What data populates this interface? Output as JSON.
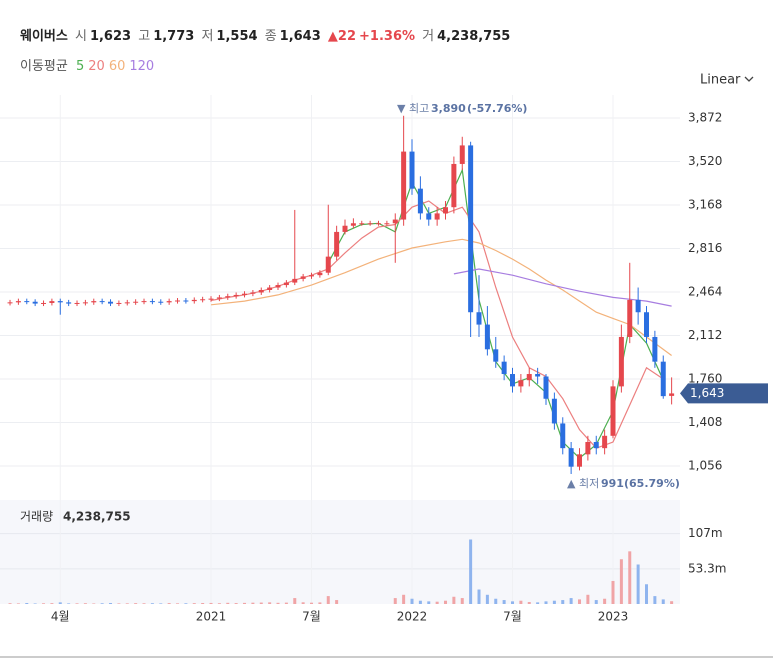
{
  "header": {
    "name": "웨이버스",
    "open_label": "시",
    "open": "1,623",
    "high_label": "고",
    "high": "1,773",
    "low_label": "저",
    "low": "1,554",
    "close_label": "종",
    "close": "1,643",
    "change": "▲22",
    "change_pct": "+1.36%",
    "volume_label": "거",
    "volume": "4,238,755"
  },
  "chart_data": {
    "type": "candlestick",
    "ma_legend_title": "이동평균",
    "scale_label": "Linear",
    "up_color": "#e5474d",
    "down_color": "#2a6ee0",
    "grid": true,
    "xlim": [
      -0.3,
      40
    ],
    "xticks": [
      {
        "value": 3,
        "label": "4월"
      },
      {
        "value": 12,
        "label": "2021"
      },
      {
        "value": 18,
        "label": "7월"
      },
      {
        "value": 24,
        "label": "2022"
      },
      {
        "value": 30,
        "label": "7월"
      },
      {
        "value": 36,
        "label": "2023"
      }
    ],
    "ylim": [
      821,
      4058
    ],
    "yticks": [
      {
        "value": 1056,
        "label": "1,056"
      },
      {
        "value": 1408,
        "label": "1,408"
      },
      {
        "value": 1760,
        "label": "1,760"
      },
      {
        "value": 2112,
        "label": "2,112"
      },
      {
        "value": 2464,
        "label": "2,464"
      },
      {
        "value": 2816,
        "label": "2,816"
      },
      {
        "value": 3168,
        "label": "3,168"
      },
      {
        "value": 3520,
        "label": "3,520"
      },
      {
        "value": 3872,
        "label": "3,872"
      }
    ],
    "x": [
      0,
      0.5,
      1,
      1.5,
      2,
      2.5,
      3,
      3.5,
      4,
      4.5,
      5,
      5.5,
      6,
      6.5,
      7,
      7.5,
      8,
      8.5,
      9,
      9.5,
      10,
      10.5,
      11,
      11.5,
      12,
      12.5,
      13,
      13.5,
      14,
      14.5,
      15,
      15.5,
      16,
      16.5,
      17,
      17.5,
      18,
      18.5,
      19,
      19.5,
      20,
      20.5,
      21,
      21.5,
      22,
      22.5,
      23,
      23.5,
      24,
      24.5,
      25,
      25.5,
      26,
      26.5,
      27,
      27.5,
      28,
      28.5,
      29,
      29.5,
      30,
      30.5,
      31,
      31.5,
      32,
      32.5,
      33,
      33.5,
      34,
      34.5,
      35,
      35.5,
      36,
      36.5,
      37,
      37.5,
      38,
      38.5,
      39,
      39.5
    ],
    "open": [
      2375,
      2380,
      2390,
      2385,
      2370,
      2375,
      2390,
      2380,
      2370,
      2375,
      2380,
      2390,
      2385,
      2370,
      2375,
      2380,
      2385,
      2390,
      2385,
      2380,
      2390,
      2395,
      2390,
      2400,
      2405,
      2410,
      2420,
      2430,
      2440,
      2450,
      2460,
      2480,
      2500,
      2520,
      2540,
      2570,
      2590,
      2600,
      2620,
      2750,
      2950,
      3000,
      3020,
      3020,
      3020,
      3020,
      3020,
      3050,
      3600,
      3300,
      3100,
      3050,
      3100,
      3150,
      3500,
      3650,
      2300,
      2200,
      2000,
      1900,
      1800,
      1700,
      1750,
      1800,
      1780,
      1600,
      1400,
      1200,
      1050,
      1150,
      1250,
      1200,
      1300,
      1700,
      2100,
      2400,
      2300,
      2100,
      1900,
      1623
    ],
    "high": [
      2400,
      2410,
      2410,
      2405,
      2395,
      2410,
      2410,
      2400,
      2395,
      2400,
      2410,
      2410,
      2405,
      2395,
      2400,
      2405,
      2410,
      2410,
      2405,
      2410,
      2415,
      2415,
      2420,
      2425,
      2430,
      2440,
      2450,
      2460,
      2470,
      2480,
      2500,
      2520,
      2540,
      2560,
      3128,
      2610,
      2620,
      2640,
      3170,
      3000,
      3050,
      3060,
      3040,
      3040,
      3040,
      3040,
      3100,
      3890,
      3700,
      3400,
      3150,
      3150,
      3200,
      3560,
      3720,
      3680,
      2600,
      2350,
      2100,
      1950,
      1850,
      1800,
      1850,
      1850,
      1800,
      1650,
      1450,
      1250,
      1200,
      1300,
      1300,
      1350,
      1750,
      2200,
      2700,
      2500,
      2350,
      2150,
      1950,
      1773
    ],
    "low": [
      2355,
      2360,
      2365,
      2350,
      2350,
      2355,
      2280,
      2350,
      2350,
      2355,
      2360,
      2365,
      2350,
      2350,
      2355,
      2360,
      2365,
      2365,
      2360,
      2360,
      2370,
      2370,
      2370,
      2380,
      2385,
      2390,
      2400,
      2410,
      2420,
      2430,
      2440,
      2460,
      2480,
      2500,
      2520,
      2550,
      2570,
      2580,
      2600,
      2720,
      2930,
      2980,
      3000,
      3000,
      3000,
      3000,
      2700,
      3000,
      3250,
      3050,
      3000,
      3000,
      3050,
      3100,
      3450,
      2100,
      2100,
      1950,
      1850,
      1750,
      1650,
      1650,
      1700,
      1720,
      1550,
      1350,
      1150,
      991,
      1020,
      1100,
      1150,
      1150,
      1280,
      1650,
      2050,
      2200,
      2050,
      1850,
      1600,
      1554
    ],
    "close": [
      2380,
      2390,
      2385,
      2370,
      2375,
      2390,
      2380,
      2370,
      2375,
      2380,
      2390,
      2385,
      2370,
      2375,
      2380,
      2385,
      2390,
      2385,
      2380,
      2390,
      2395,
      2390,
      2400,
      2405,
      2410,
      2420,
      2430,
      2440,
      2450,
      2460,
      2480,
      2500,
      2520,
      2540,
      2570,
      2590,
      2600,
      2620,
      2750,
      2950,
      3000,
      3020,
      3020,
      3020,
      3020,
      3020,
      3050,
      3600,
      3300,
      3100,
      3050,
      3100,
      3150,
      3500,
      3650,
      2300,
      2200,
      2000,
      1900,
      1800,
      1700,
      1750,
      1800,
      1780,
      1600,
      1400,
      1200,
      1050,
      1150,
      1250,
      1200,
      1300,
      1700,
      2100,
      2400,
      2300,
      2100,
      1900,
      1621,
      1643
    ],
    "moving_averages": [
      {
        "name": "5",
        "color": "#4caf50",
        "x": [
          19,
          20,
          21,
          22,
          23,
          24,
          25,
          26,
          27,
          28,
          29,
          30,
          31,
          32,
          33,
          34,
          35,
          36,
          37,
          38,
          39
        ],
        "values": [
          2700,
          2950,
          3010,
          3020,
          2950,
          3350,
          3100,
          3150,
          3450,
          2400,
          1900,
          1720,
          1770,
          1650,
          1250,
          1120,
          1230,
          1500,
          2200,
          2050,
          1750
        ]
      },
      {
        "name": "20",
        "color": "#ec7f7f",
        "x": [
          12,
          13,
          14,
          15,
          16,
          17,
          18,
          19,
          20,
          21,
          22,
          23,
          24,
          25,
          26,
          27,
          28,
          29,
          30,
          31,
          32,
          33,
          34,
          35,
          36,
          37,
          38,
          39
        ],
        "values": [
          2395,
          2420,
          2440,
          2470,
          2510,
          2560,
          2600,
          2650,
          2780,
          2900,
          2990,
          3010,
          3150,
          3200,
          3100,
          3150,
          2950,
          2500,
          2100,
          1850,
          1780,
          1600,
          1350,
          1200,
          1250,
          1550,
          1850,
          1760
        ]
      },
      {
        "name": "60",
        "color": "#f3b27a",
        "x": [
          12,
          14,
          16,
          18,
          20,
          22,
          24,
          26,
          27,
          28,
          29,
          30,
          31,
          32,
          33,
          34,
          35,
          36,
          37,
          38,
          39.5
        ],
        "values": [
          2360,
          2390,
          2440,
          2520,
          2620,
          2730,
          2820,
          2870,
          2890,
          2860,
          2800,
          2730,
          2650,
          2560,
          2480,
          2390,
          2300,
          2250,
          2200,
          2100,
          1950
        ]
      },
      {
        "name": "120",
        "color": "#a77de0",
        "x": [
          26.5,
          28,
          30,
          32,
          34,
          36,
          38,
          39.5
        ],
        "values": [
          2610,
          2650,
          2600,
          2530,
          2470,
          2420,
          2390,
          2350
        ]
      }
    ],
    "max_annotation": {
      "text": "▼ 최고",
      "value": "3,890",
      "change": "(-57.76%)"
    },
    "min_annotation": {
      "text": "▲ 최저",
      "value": "991",
      "change": "(65.79%)"
    },
    "last_price": {
      "value": 1643,
      "label": "1,643"
    },
    "volume_title": "거래량",
    "volume_value": "4,238,755",
    "volume_ylim": [
      0,
      158000000
    ],
    "volume_yticks": [
      {
        "value": 53300000,
        "label": "53.3m"
      },
      {
        "value": 107000000,
        "label": "107m"
      }
    ],
    "volume": [
      1200000,
      900000,
      1500000,
      800000,
      1100000,
      1300000,
      2500000,
      900000,
      1000000,
      1200000,
      800000,
      1100000,
      1500000,
      900000,
      1000000,
      1300000,
      1100000,
      1200000,
      900000,
      1400000,
      1000000,
      1100000,
      1300000,
      1500000,
      1600000,
      1200000,
      1800000,
      1400000,
      1700000,
      2000000,
      2200000,
      2500000,
      1800000,
      2100000,
      9000000,
      2600000,
      2000000,
      2400000,
      12000000,
      6000000,
      0,
      0,
      0,
      0,
      0,
      0,
      9000000,
      14000000,
      8000000,
      5000000,
      4000000,
      3500000,
      5000000,
      11000000,
      9000000,
      98000000,
      22000000,
      14000000,
      8000000,
      6000000,
      4000000,
      5000000,
      3000000,
      2500000,
      4000000,
      5000000,
      6000000,
      9000000,
      7000000,
      14000000,
      6000000,
      8000000,
      35000000,
      68000000,
      80000000,
      60000000,
      30000000,
      12000000,
      7000000,
      4238755
    ]
  }
}
